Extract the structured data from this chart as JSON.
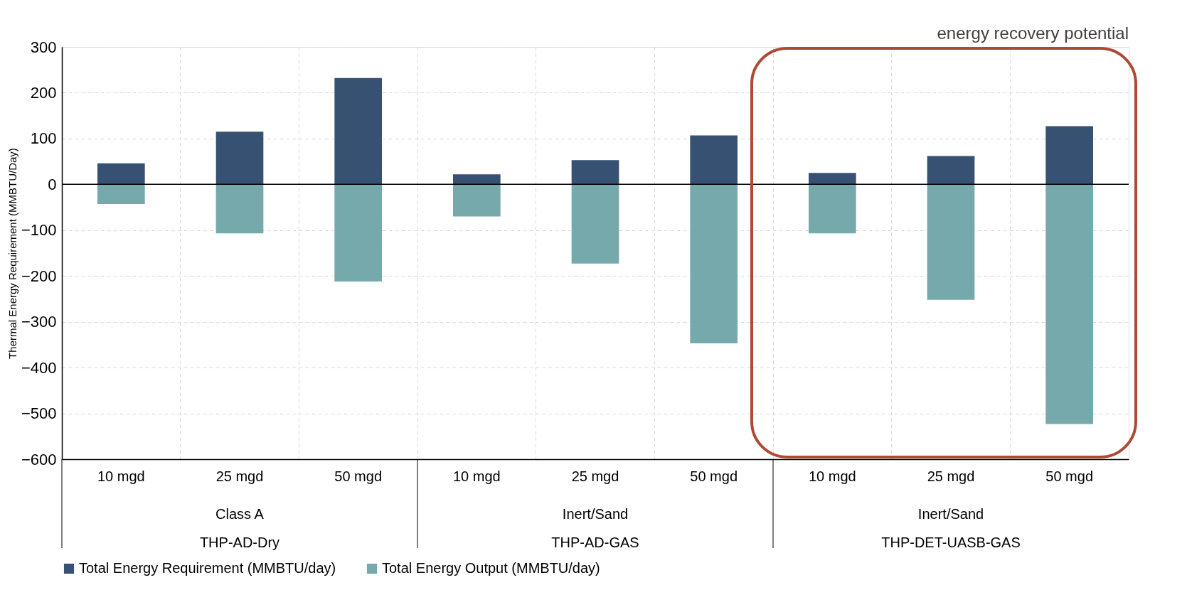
{
  "chart_data": {
    "type": "bar",
    "stacked": true,
    "ylabel": "Thermal Energy Requirement (MMBTU/Day)",
    "categories": [
      "10 mgd",
      "25 mgd",
      "50 mgd",
      "10 mgd",
      "25 mgd",
      "50 mgd",
      "10 mgd",
      "25 mgd",
      "50 mgd"
    ],
    "series": [
      {
        "name": "Total Energy Requirement (MMBTU/day)",
        "color": "#375172",
        "values": [
          46,
          115,
          232,
          22,
          53,
          107,
          25,
          62,
          127
        ]
      },
      {
        "name": "Total Energy Output  (MMBTU/day)",
        "color": "#75a9ac",
        "values": [
          -43,
          -107,
          -212,
          -70,
          -173,
          -347,
          -107,
          -252,
          -523
        ]
      }
    ],
    "ylim": [
      -600,
      300
    ],
    "yticks": [
      -600,
      -500,
      -400,
      -300,
      -200,
      -100,
      0,
      100,
      200,
      300
    ],
    "grid": true,
    "legend": "bottom",
    "ref_lines": [
      {
        "axis": "y",
        "value": 0,
        "color": "#000000"
      }
    ],
    "annotations": [
      "energy recovery potential",
      "Class A",
      "Inert/Sand",
      "Inert/Sand",
      "THP-AD-Dry",
      "THP-AD-GAS",
      "THP-DET-UASB-GAS"
    ]
  }
}
